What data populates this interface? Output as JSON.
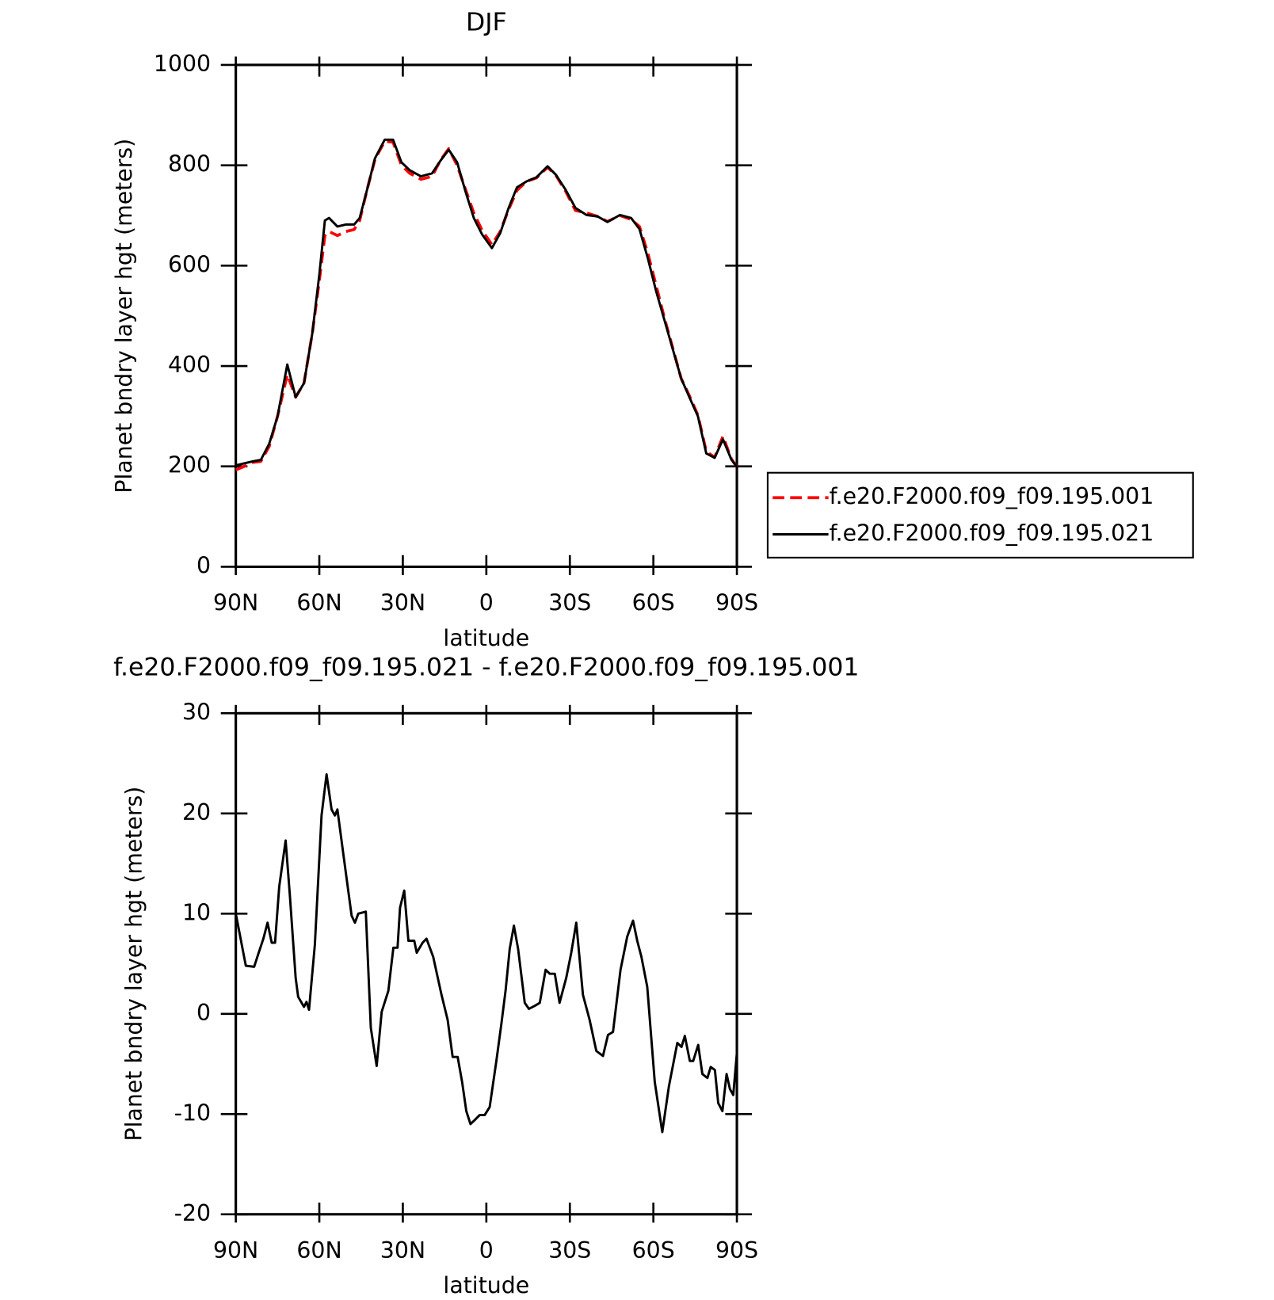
{
  "chart_data": [
    {
      "type": "line",
      "title": "DJF",
      "x_label": "latitude",
      "y_label": "Planet bndry layer hgt (meters)",
      "x": [
        90,
        87,
        84,
        81,
        78,
        75,
        71.5,
        68.5,
        65.5,
        62.5,
        60,
        58,
        56.5,
        53.5,
        50.5,
        47.5,
        45.5,
        43,
        40,
        36.5,
        33.5,
        30.5,
        27.5,
        23.5,
        19.5,
        16.5,
        13.5,
        10.5,
        7.5,
        4.5,
        1.5,
        -2,
        -5,
        -8,
        -11,
        -14.5,
        -18,
        -22,
        -25,
        -28.5,
        -32,
        -36,
        -40,
        -43.5,
        -48,
        -52,
        -55,
        -58,
        -61,
        -64,
        -67,
        -70,
        -73,
        -76,
        -79,
        -82,
        -85,
        -88,
        -90
      ],
      "series": [
        {
          "name": "f.e20.F2000.f09_f09.195.001",
          "color": "#ff0000",
          "dashed": true,
          "values": [
            193,
            200,
            208,
            210,
            240,
            300,
            383,
            338,
            366,
            466,
            570,
            660,
            668,
            660,
            668,
            672,
            690,
            748,
            812,
            848,
            846,
            800,
            784,
            772,
            778,
            810,
            833,
            800,
            752,
            705,
            670,
            642,
            668,
            712,
            750,
            768,
            775,
            796,
            780,
            748,
            710,
            705,
            698,
            688,
            700,
            692,
            678,
            625,
            560,
            495,
            435,
            375,
            340,
            302,
            230,
            218,
            260,
            215,
            199
          ]
        },
        {
          "name": "f.e20.F2000.f09_f09.195.021",
          "color": "#000000",
          "dashed": false,
          "values": [
            202,
            206,
            210,
            213,
            245,
            300,
            403,
            338,
            366,
            466,
            582,
            690,
            695,
            678,
            682,
            682,
            695,
            748,
            814,
            851,
            851,
            806,
            790,
            778,
            784,
            809,
            831,
            806,
            748,
            695,
            662,
            635,
            665,
            715,
            756,
            768,
            776,
            798,
            781,
            751,
            715,
            701,
            698,
            687,
            701,
            695,
            673,
            615,
            549,
            491,
            433,
            375,
            337,
            300,
            226,
            217,
            254,
            214,
            199
          ]
        }
      ],
      "xlim": [
        90,
        -90
      ],
      "xticks": [
        {
          "value": 90,
          "label": "90N"
        },
        {
          "value": 60,
          "label": "60N"
        },
        {
          "value": 30,
          "label": "30N"
        },
        0,
        {
          "value": -30,
          "label": "30S"
        },
        {
          "value": -60,
          "label": "60S"
        },
        {
          "value": -90,
          "label": "90S"
        }
      ],
      "ylim": [
        0,
        1000
      ],
      "yticks": [
        0,
        200,
        400,
        600,
        800,
        1000
      ],
      "legend": "right"
    },
    {
      "type": "line",
      "title": "f.e20.F2000.f09_f09.195.021 - f.e20.F2000.f09_f09.195.001",
      "x_label": "latitude",
      "y_label": "Planet bndry layer hgt (meters)",
      "x": [
        90,
        86.4,
        83.4,
        81.9,
        80.1,
        78.6,
        77.1,
        75.9,
        74.4,
        72.1,
        70.6,
        68.5,
        67.6,
        65.5,
        64.6,
        63.7,
        61.6,
        59.2,
        57.4,
        55.6,
        54.4,
        53.5,
        51.4,
        48.4,
        47.2,
        46,
        43.3,
        41.5,
        39.4,
        37.6,
        35.2,
        33.4,
        31.9,
        31,
        29.5,
        28,
        25.9,
        25,
        22.9,
        21.5,
        19.1,
        16.1,
        13.9,
        12.1,
        10.3,
        8.7,
        7.2,
        5.7,
        4.2,
        2.4,
        0.6,
        -1.2,
        -3.6,
        -5.4,
        -6.9,
        -8.4,
        -9.9,
        -11.4,
        -13.8,
        -15.3,
        -17.4,
        -19.2,
        -21.3,
        -22.8,
        -24.6,
        -26.3,
        -28.7,
        -30.5,
        -32.3,
        -34.7,
        -37.1,
        -39.5,
        -41.9,
        -43.7,
        -45.5,
        -48.2,
        -50.6,
        -52.7,
        -54.2,
        -55.7,
        -57.8,
        -60.5,
        -63.2,
        -65.6,
        -68.6,
        -70.1,
        -71.3,
        -73.1,
        -74.3,
        -76.1,
        -77.6,
        -79.4,
        -80.6,
        -82.1,
        -83.3,
        -84.8,
        -86.3,
        -87.5,
        -88.7,
        -90
      ],
      "series": [
        {
          "color": "#000000",
          "dashed": false,
          "values": [
            10,
            4.8,
            4.7,
            6,
            7.5,
            9.1,
            7.1,
            7.1,
            12.7,
            17.3,
            11.9,
            3.6,
            1.7,
            0.7,
            1.2,
            0.4,
            6.9,
            19.8,
            23.9,
            20.4,
            19.8,
            20.4,
            16,
            9.8,
            9.1,
            10,
            10.2,
            -1.4,
            -5.2,
            0.2,
            2.3,
            6.6,
            6.6,
            10.6,
            12.3,
            7.3,
            7.3,
            6.1,
            7.1,
            7.5,
            5.7,
            1.9,
            -0.6,
            -4.3,
            -4.3,
            -6.8,
            -9.7,
            -11,
            -10.6,
            -10.1,
            -10.1,
            -9.3,
            -4.7,
            -1,
            2.3,
            6.5,
            8.8,
            6.5,
            1.1,
            0.5,
            0.8,
            1.1,
            4.4,
            4,
            4,
            1.1,
            3.6,
            6.1,
            9.1,
            1.9,
            -0.6,
            -3.7,
            -4.2,
            -2.1,
            -1.8,
            4.4,
            7.7,
            9.3,
            7.3,
            5.7,
            2.7,
            -6.8,
            -11.8,
            -7.2,
            -2.9,
            -3.3,
            -2.2,
            -4.7,
            -4.7,
            -3.1,
            -6,
            -6.4,
            -5.3,
            -5.6,
            -8.9,
            -9.7,
            -6,
            -7.5,
            -8.1,
            -3.9
          ]
        }
      ],
      "xlim": [
        90,
        -90
      ],
      "xticks": [
        {
          "value": 90,
          "label": "90N"
        },
        {
          "value": 60,
          "label": "60N"
        },
        {
          "value": 30,
          "label": "30N"
        },
        0,
        {
          "value": -30,
          "label": "30S"
        },
        {
          "value": -60,
          "label": "60S"
        },
        {
          "value": -90,
          "label": "90S"
        }
      ],
      "ylim": [
        -20,
        30
      ],
      "yticks": [
        -20,
        -10,
        0,
        10,
        20,
        30
      ]
    }
  ]
}
